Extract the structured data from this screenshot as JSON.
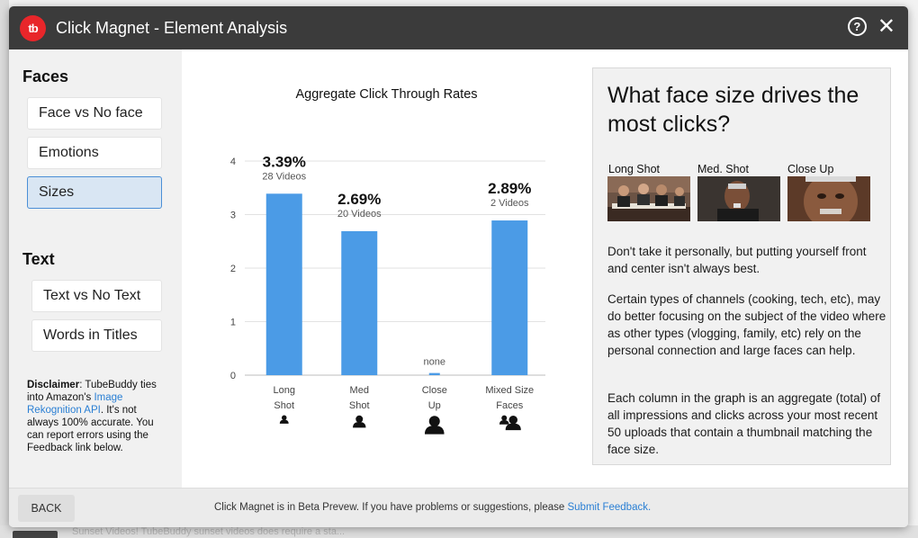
{
  "window": {
    "logo_text": "tb",
    "title": "Click Magnet - Element Analysis",
    "help_icon": "question-circle-icon",
    "close_icon": "close-icon"
  },
  "sidebar": {
    "faces_title": "Faces",
    "faces_items": [
      {
        "label": "Face vs No face",
        "active": false
      },
      {
        "label": "Emotions",
        "active": false
      },
      {
        "label": "Sizes",
        "active": true
      }
    ],
    "text_title": "Text",
    "text_items": [
      {
        "label": "Text vs No Text",
        "active": false
      },
      {
        "label": "Words in Titles",
        "active": false
      }
    ],
    "disclaimer": {
      "bold": "Disclaimer",
      "part1": ": TubeBuddy ties into Amazon's ",
      "link": "Image Rekognition API",
      "part2": ". It's not always 100% accurate. You can report errors using the Feedback link below."
    }
  },
  "chart_data": {
    "type": "bar",
    "title": "Aggregate Click Through Rates",
    "categories": [
      "Long Shot",
      "Med Shot",
      "Close Up",
      "Mixed Size Faces"
    ],
    "category_lines": [
      [
        "Long",
        "Shot"
      ],
      [
        "Med",
        "Shot"
      ],
      [
        "Close",
        "Up"
      ],
      [
        "Mixed Size",
        "Faces"
      ]
    ],
    "values": [
      3.39,
      2.69,
      0.04,
      2.89
    ],
    "value_labels": [
      "3.39%",
      "2.69%",
      "none",
      "2.89%"
    ],
    "sub_labels": [
      "28 Videos",
      "20 Videos",
      "",
      "2 Videos"
    ],
    "yticks": [
      "0",
      "1",
      "2",
      "3",
      "4"
    ],
    "ylim": [
      0,
      4
    ],
    "grid": true,
    "bar_color": "#4b9be6",
    "xlabel": "",
    "ylabel": ""
  },
  "info": {
    "heading": "What face size drives the most clicks?",
    "thumbnails": [
      "Long Shot",
      "Med. Shot",
      "Close Up"
    ],
    "paragraphs": [
      "Don't take it personally, but putting yourself front and center isn't always best.",
      "Certain types of channels (cooking, tech, etc), may do better focusing on the subject of the video where as other types (vlogging, family, etc) rely on the personal connection and large faces can help.",
      "Each column in the graph is an aggregate (total) of all impressions and clicks across your most recent 50 uploads that contain a thumbnail matching the face size."
    ]
  },
  "footer": {
    "back_label": "BACK",
    "message": "Click Magnet is in Beta Prevew. If you have problems or suggestions, please ",
    "link": "Submit Feedback."
  },
  "background": {
    "bottom_text": "Sunset Videos! TubeBuddy sunset videos does require a sta..."
  }
}
